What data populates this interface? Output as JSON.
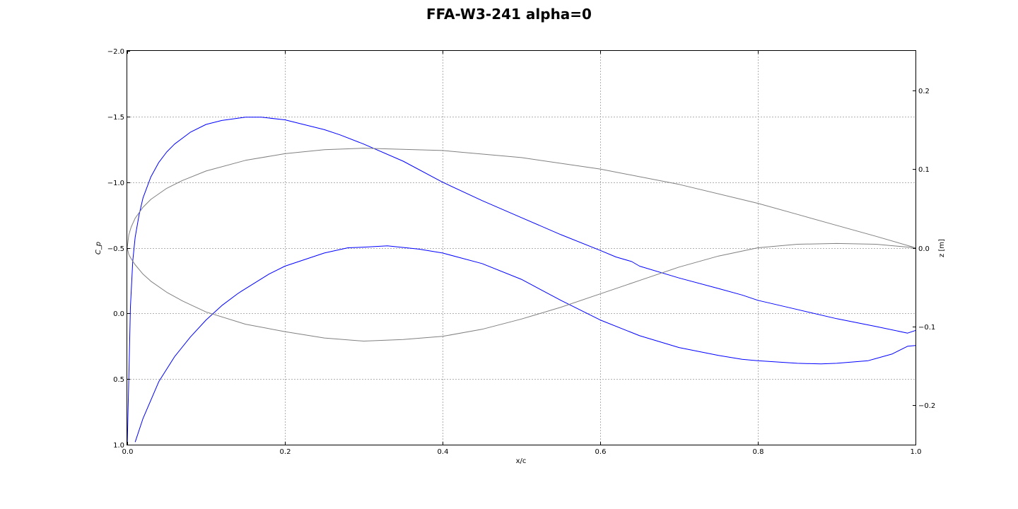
{
  "chart_data": {
    "type": "line",
    "title": "FFA-W3-241 alpha=0",
    "xlabel": "x/c",
    "ylabel_left": "C_p",
    "ylabel_right": "z [m]",
    "xlim": [
      0.0,
      1.0
    ],
    "ylim_left": [
      1.0,
      -2.0
    ],
    "ylim_right": [
      -0.25,
      0.25
    ],
    "grid": true,
    "x_ticks": [
      "0.0",
      "0.2",
      "0.4",
      "0.6",
      "0.8",
      "1.0"
    ],
    "y_left_ticks": [
      "−2.0",
      "−1.5",
      "−1.0",
      "−0.5",
      "0.0",
      "0.5",
      "1.0"
    ],
    "y_right_ticks": [
      "0.2",
      "0.1",
      "0.0",
      "−0.1",
      "−0.2"
    ],
    "colors": {
      "cp": "#0000ff",
      "profile": "#808080",
      "grid": "#b0b0b0"
    },
    "series": [
      {
        "axis": "left",
        "color": "#0000ff",
        "x": [
          0.0,
          0.002,
          0.004,
          0.007,
          0.01,
          0.015,
          0.02,
          0.03,
          0.04,
          0.05,
          0.06,
          0.08,
          0.1,
          0.12,
          0.15,
          0.17,
          0.2,
          0.25,
          0.27,
          0.3,
          0.35,
          0.4,
          0.45,
          0.5,
          0.55,
          0.6,
          0.62,
          0.64,
          0.65,
          0.7,
          0.75,
          0.78,
          0.8,
          0.85,
          0.9,
          0.95,
          0.99,
          1.0
        ],
        "y": [
          1.0,
          0.5,
          -0.05,
          -0.4,
          -0.58,
          -0.75,
          -0.88,
          -1.04,
          -1.15,
          -1.23,
          -1.29,
          -1.38,
          -1.44,
          -1.47,
          -1.495,
          -1.495,
          -1.475,
          -1.4,
          -1.36,
          -1.29,
          -1.16,
          -1.0,
          -0.86,
          -0.73,
          -0.6,
          -0.48,
          -0.43,
          -0.395,
          -0.36,
          -0.27,
          -0.19,
          -0.14,
          -0.1,
          -0.03,
          0.04,
          0.1,
          0.15,
          0.13
        ]
      },
      {
        "axis": "left",
        "color": "#0000ff",
        "x": [
          0.01,
          0.02,
          0.04,
          0.06,
          0.08,
          0.1,
          0.12,
          0.14,
          0.145,
          0.18,
          0.2,
          0.25,
          0.28,
          0.3,
          0.33,
          0.37,
          0.4,
          0.45,
          0.5,
          0.55,
          0.6,
          0.65,
          0.7,
          0.75,
          0.78,
          0.8,
          0.85,
          0.88,
          0.9,
          0.94,
          0.97,
          0.99,
          1.0
        ],
        "y": [
          0.98,
          0.8,
          0.52,
          0.33,
          0.18,
          0.05,
          -0.06,
          -0.15,
          -0.17,
          -0.3,
          -0.36,
          -0.46,
          -0.5,
          -0.505,
          -0.515,
          -0.49,
          -0.46,
          -0.38,
          -0.26,
          -0.1,
          0.05,
          0.17,
          0.26,
          0.32,
          0.35,
          0.36,
          0.38,
          0.385,
          0.38,
          0.36,
          0.31,
          0.25,
          0.245
        ]
      },
      {
        "axis": "right",
        "color": "#808080",
        "x": [
          1.0,
          0.95,
          0.9,
          0.85,
          0.8,
          0.7,
          0.6,
          0.5,
          0.4,
          0.3,
          0.25,
          0.2,
          0.15,
          0.1,
          0.07,
          0.05,
          0.03,
          0.02,
          0.01,
          0.005,
          0.002,
          0.0
        ],
        "y": [
          0.0,
          0.0145,
          0.0285,
          0.0425,
          0.0565,
          0.0805,
          0.1,
          0.1145,
          0.1235,
          0.1265,
          0.1245,
          0.1195,
          0.111,
          0.0975,
          0.0855,
          0.0755,
          0.0615,
          0.0515,
          0.0375,
          0.0265,
          0.0165,
          0.0
        ]
      },
      {
        "axis": "right",
        "color": "#808080",
        "x": [
          0.0,
          0.002,
          0.005,
          0.01,
          0.02,
          0.03,
          0.05,
          0.07,
          0.1,
          0.15,
          0.2,
          0.25,
          0.3,
          0.35,
          0.4,
          0.45,
          0.5,
          0.55,
          0.6,
          0.65,
          0.7,
          0.75,
          0.8,
          0.85,
          0.9,
          0.95,
          1.0
        ],
        "y": [
          0.0,
          -0.0085,
          -0.014,
          -0.0215,
          -0.0335,
          -0.0425,
          -0.0565,
          -0.0675,
          -0.0815,
          -0.097,
          -0.1065,
          -0.1145,
          -0.1185,
          -0.1165,
          -0.1125,
          -0.1035,
          -0.0905,
          -0.0755,
          -0.0585,
          -0.0415,
          -0.0245,
          -0.0105,
          0.0,
          0.0045,
          0.0055,
          0.0045,
          0.0
        ]
      }
    ]
  }
}
